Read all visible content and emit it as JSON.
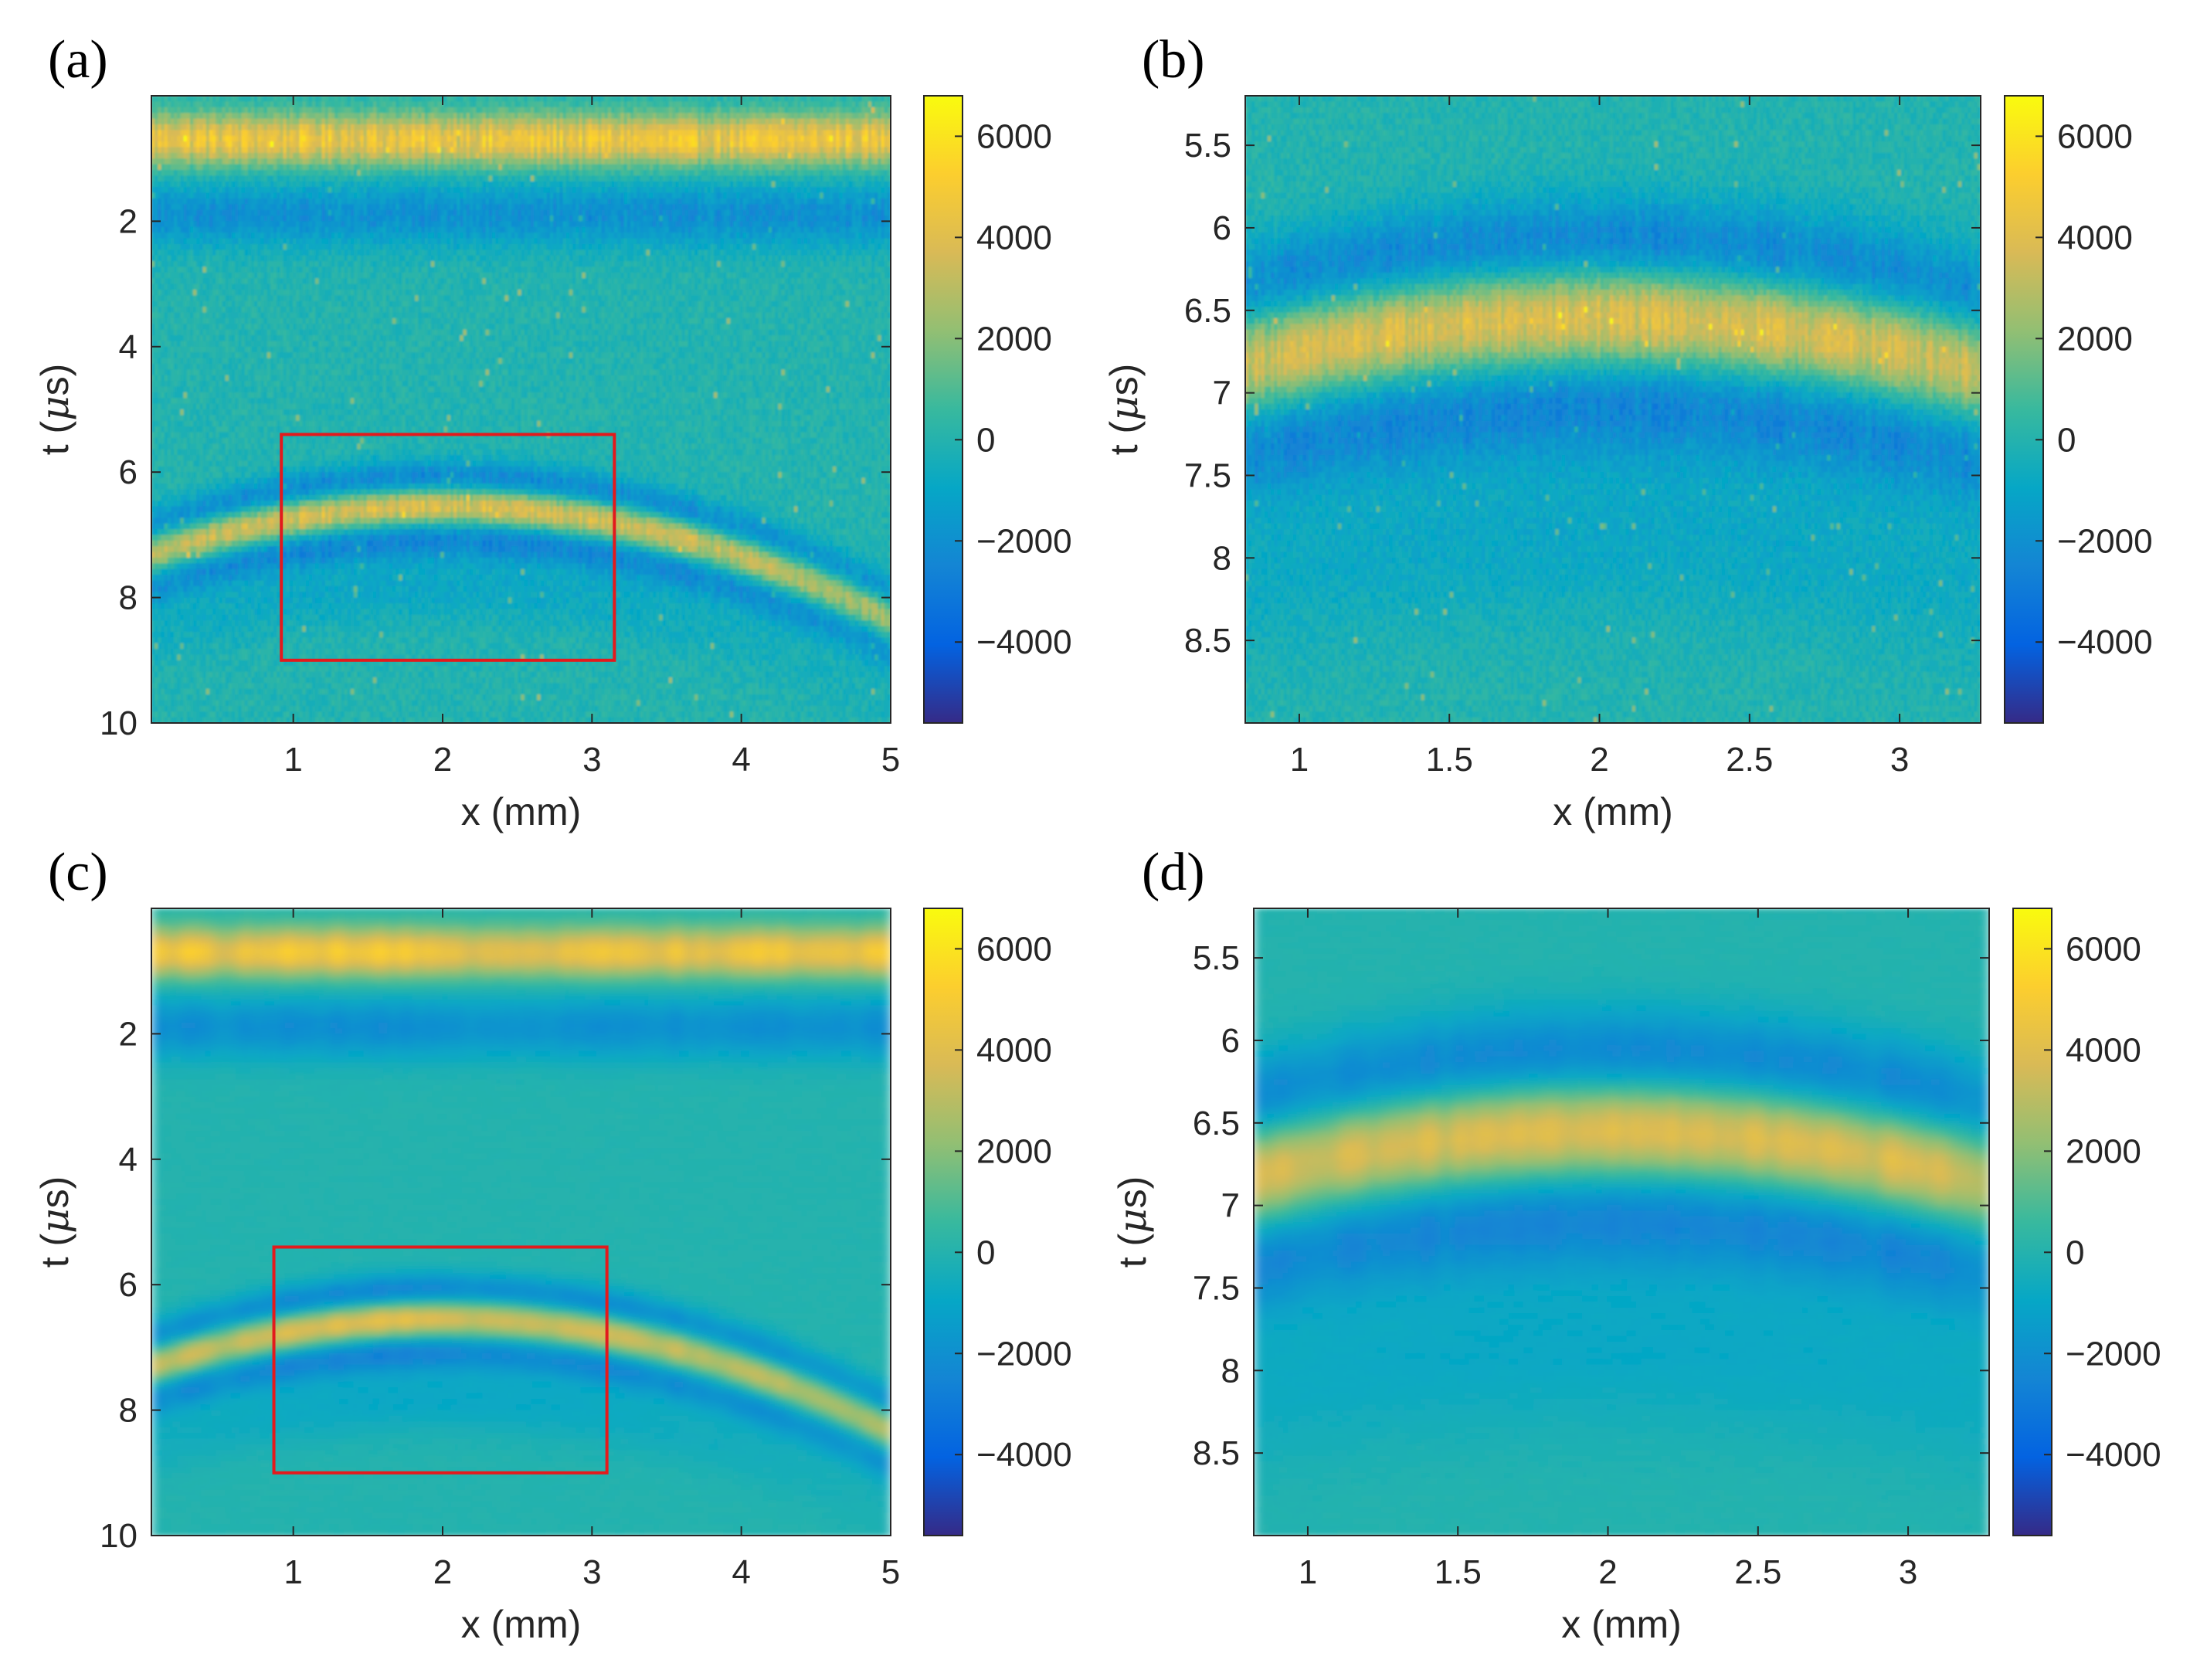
{
  "chart_data": [
    {
      "type": "heatmap",
      "panel_label": "(a)",
      "xlabel": "x (mm)",
      "ylabel_pre": "t (",
      "ylabel_mu": "μ",
      "ylabel_post": "s)",
      "xlim": [
        0.05,
        5.0
      ],
      "ylim": [
        0.0,
        10.0
      ],
      "y_reversed": true,
      "xticks": [
        1,
        2,
        3,
        4,
        5
      ],
      "xtick_labels": [
        "1",
        "2",
        "3",
        "4",
        "5"
      ],
      "yticks": [
        2,
        4,
        6,
        8,
        10
      ],
      "ytick_labels": [
        "2",
        "4",
        "6",
        "8",
        "10"
      ],
      "colorbar": {
        "clim": [
          -5600,
          6800
        ],
        "ticks": [
          6000,
          4000,
          2000,
          0,
          -2000,
          -4000
        ],
        "tick_labels": [
          "6000",
          "4000",
          "2000",
          "0",
          "−2000",
          "−4000"
        ]
      },
      "surface_band": {
        "t_center": 0.7,
        "amplitude": 4500
      },
      "surface_negative_band": {
        "t_center": 1.9,
        "amplitude": -2000
      },
      "echo_arc": {
        "apex_x": 2.0,
        "apex_t": 6.55,
        "amplitude": 4200,
        "curvature_us_per_mm2": 0.2
      },
      "smoothed": false,
      "roi_box": {
        "x0": 0.92,
        "x1": 3.15,
        "t0": 5.4,
        "t1": 9.0
      }
    },
    {
      "type": "heatmap",
      "panel_label": "(b)",
      "xlabel": "x (mm)",
      "ylabel_pre": "t (",
      "ylabel_mu": "μ",
      "ylabel_post": "s)",
      "xlim": [
        0.82,
        3.27
      ],
      "ylim": [
        5.2,
        9.0
      ],
      "y_reversed": true,
      "xticks": [
        1,
        1.5,
        2,
        2.5,
        3
      ],
      "xtick_labels": [
        "1",
        "1.5",
        "2",
        "2.5",
        "3"
      ],
      "yticks": [
        5.5,
        6,
        6.5,
        7,
        7.5,
        8,
        8.5
      ],
      "ytick_labels": [
        "5.5",
        "6",
        "6.5",
        "7",
        "7.5",
        "8",
        "8.5"
      ],
      "colorbar": {
        "clim": [
          -5600,
          6800
        ],
        "ticks": [
          6000,
          4000,
          2000,
          0,
          -2000,
          -4000
        ],
        "tick_labels": [
          "6000",
          "4000",
          "2000",
          "0",
          "−2000",
          "−4000"
        ]
      },
      "echo_arc": {
        "apex_x": 2.0,
        "apex_t": 6.55,
        "amplitude": 4200,
        "curvature_us_per_mm2": 0.2
      },
      "smoothed": false
    },
    {
      "type": "heatmap",
      "panel_label": "(c)",
      "xlabel": "x (mm)",
      "ylabel_pre": "t (",
      "ylabel_mu": "μ",
      "ylabel_post": "s)",
      "xlim": [
        0.05,
        5.0
      ],
      "ylim": [
        0.0,
        10.0
      ],
      "y_reversed": true,
      "xticks": [
        1,
        2,
        3,
        4,
        5
      ],
      "xtick_labels": [
        "1",
        "2",
        "3",
        "4",
        "5"
      ],
      "yticks": [
        2,
        4,
        6,
        8,
        10
      ],
      "ytick_labels": [
        "2",
        "4",
        "6",
        "8",
        "10"
      ],
      "colorbar": {
        "clim": [
          -5600,
          6800
        ],
        "ticks": [
          6000,
          4000,
          2000,
          0,
          -2000,
          -4000
        ],
        "tick_labels": [
          "6000",
          "4000",
          "2000",
          "0",
          "−2000",
          "−4000"
        ]
      },
      "surface_band": {
        "t_center": 0.7,
        "amplitude": 4500
      },
      "surface_negative_band": {
        "t_center": 1.9,
        "amplitude": -2000
      },
      "echo_arc": {
        "apex_x": 2.0,
        "apex_t": 6.55,
        "amplitude": 4200,
        "curvature_us_per_mm2": 0.2
      },
      "smoothed": true,
      "roi_box": {
        "x0": 0.87,
        "x1": 3.1,
        "t0": 5.4,
        "t1": 9.0
      }
    },
    {
      "type": "heatmap",
      "panel_label": "(d)",
      "xlabel": "x (mm)",
      "ylabel_pre": "t (",
      "ylabel_mu": "μ",
      "ylabel_post": "s)",
      "xlim": [
        0.82,
        3.27
      ],
      "ylim": [
        5.2,
        9.0
      ],
      "y_reversed": true,
      "xticks": [
        1,
        1.5,
        2,
        2.5,
        3
      ],
      "xtick_labels": [
        "1",
        "1.5",
        "2",
        "2.5",
        "3"
      ],
      "yticks": [
        5.5,
        6,
        6.5,
        7,
        7.5,
        8,
        8.5
      ],
      "ytick_labels": [
        "5.5",
        "6",
        "6.5",
        "7",
        "7.5",
        "8",
        "8.5"
      ],
      "colorbar": {
        "clim": [
          -5600,
          6800
        ],
        "ticks": [
          6000,
          4000,
          2000,
          0,
          -2000,
          -4000
        ],
        "tick_labels": [
          "6000",
          "4000",
          "2000",
          "0",
          "−2000",
          "−4000"
        ]
      },
      "echo_arc": {
        "apex_x": 2.0,
        "apex_t": 6.55,
        "amplitude": 4200,
        "curvature_us_per_mm2": 0.2
      },
      "smoothed": true
    }
  ],
  "colormap": {
    "name": "parula",
    "stops": [
      "#352a87",
      "#0363e1",
      "#1485d4",
      "#06a7c6",
      "#38b99e",
      "#92bf73",
      "#d9ba56",
      "#fcce2e",
      "#f9fb0e"
    ]
  },
  "roi_color": "#e31a1c"
}
